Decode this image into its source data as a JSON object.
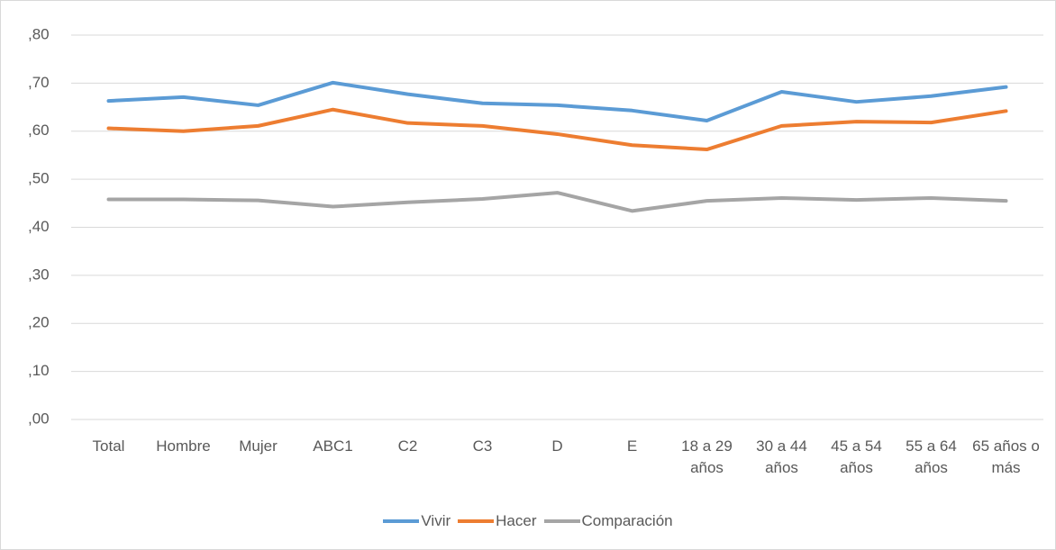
{
  "chart_data": {
    "type": "line",
    "categories": [
      "Total",
      "Hombre",
      "Mujer",
      "ABC1",
      "C2",
      "C3",
      "D",
      "E",
      "18 a 29 años",
      "30 a 44 años",
      "45 a 54 años",
      "55 a 64 años",
      "65 años o más"
    ],
    "series": [
      {
        "name": "Vivir",
        "color": "#5b9bd5",
        "values": [
          0.663,
          0.671,
          0.654,
          0.701,
          0.677,
          0.658,
          0.654,
          0.643,
          0.622,
          0.682,
          0.661,
          0.673,
          0.692
        ]
      },
      {
        "name": "Hacer",
        "color": "#ed7d31",
        "values": [
          0.606,
          0.6,
          0.611,
          0.645,
          0.617,
          0.611,
          0.594,
          0.571,
          0.562,
          0.611,
          0.62,
          0.618,
          0.642
        ]
      },
      {
        "name": "Comparación",
        "color": "#a5a5a5",
        "values": [
          0.458,
          0.458,
          0.456,
          0.443,
          0.452,
          0.459,
          0.472,
          0.434,
          0.455,
          0.461,
          0.457,
          0.461,
          0.455
        ]
      }
    ],
    "ylim": [
      0,
      0.8
    ],
    "yticks": [
      {
        "value": 0,
        "label": ",00"
      },
      {
        "value": 0.1,
        "label": ",10"
      },
      {
        "value": 0.2,
        "label": ",20"
      },
      {
        "value": 0.3,
        "label": ",30"
      },
      {
        "value": 0.4,
        "label": ",40"
      },
      {
        "value": 0.5,
        "label": ",50"
      },
      {
        "value": 0.6,
        "label": ",60"
      },
      {
        "value": 0.7,
        "label": ",70"
      },
      {
        "value": 0.8,
        "label": ",80"
      }
    ],
    "grid": true,
    "legend": "bottom"
  }
}
